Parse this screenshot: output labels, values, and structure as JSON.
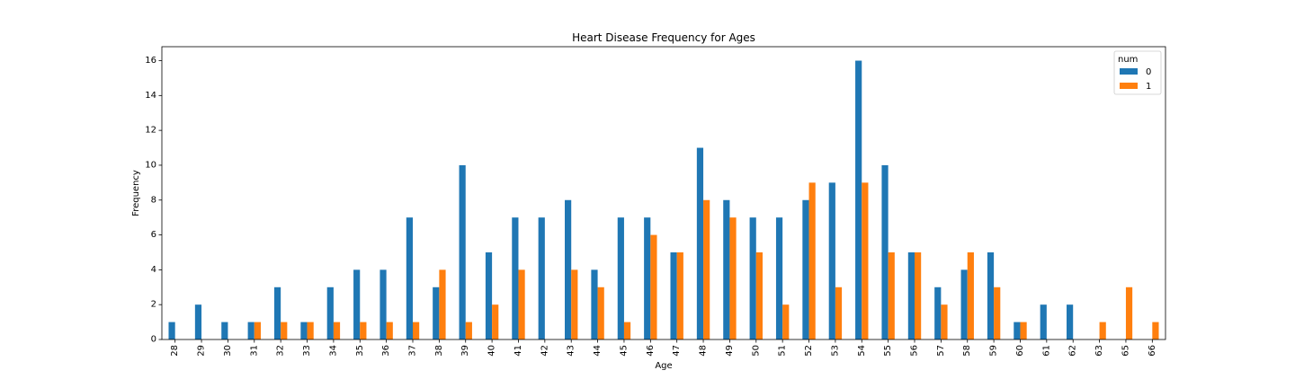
{
  "chart_data": {
    "type": "bar",
    "title": "Heart Disease Frequency for Ages",
    "xlabel": "Age",
    "ylabel": "Frequency",
    "ylim": [
      0,
      16.8
    ],
    "yticks": [
      0,
      2,
      4,
      6,
      8,
      10,
      12,
      14,
      16
    ],
    "categories": [
      "28",
      "29",
      "30",
      "31",
      "32",
      "33",
      "34",
      "35",
      "36",
      "37",
      "38",
      "39",
      "40",
      "41",
      "42",
      "43",
      "44",
      "45",
      "46",
      "47",
      "48",
      "49",
      "50",
      "51",
      "52",
      "53",
      "54",
      "55",
      "56",
      "57",
      "58",
      "59",
      "60",
      "61",
      "62",
      "63",
      "65",
      "66"
    ],
    "legend_title": "num",
    "legend_position": "upper right",
    "grid": false,
    "series": [
      {
        "name": "0",
        "color": "#1f77b4",
        "values": [
          1,
          2,
          1,
          1,
          3,
          1,
          3,
          4,
          4,
          7,
          3,
          10,
          5,
          7,
          7,
          8,
          4,
          7,
          7,
          5,
          11,
          8,
          7,
          7,
          8,
          9,
          16,
          10,
          5,
          3,
          4,
          5,
          1,
          2,
          2,
          0,
          0,
          0
        ]
      },
      {
        "name": "1",
        "color": "#ff7f0e",
        "values": [
          0,
          0,
          0,
          1,
          1,
          1,
          1,
          1,
          1,
          1,
          4,
          1,
          2,
          4,
          0,
          4,
          3,
          1,
          6,
          5,
          8,
          7,
          5,
          2,
          9,
          3,
          9,
          5,
          5,
          2,
          5,
          3,
          1,
          0,
          0,
          1,
          3,
          1
        ]
      }
    ]
  }
}
